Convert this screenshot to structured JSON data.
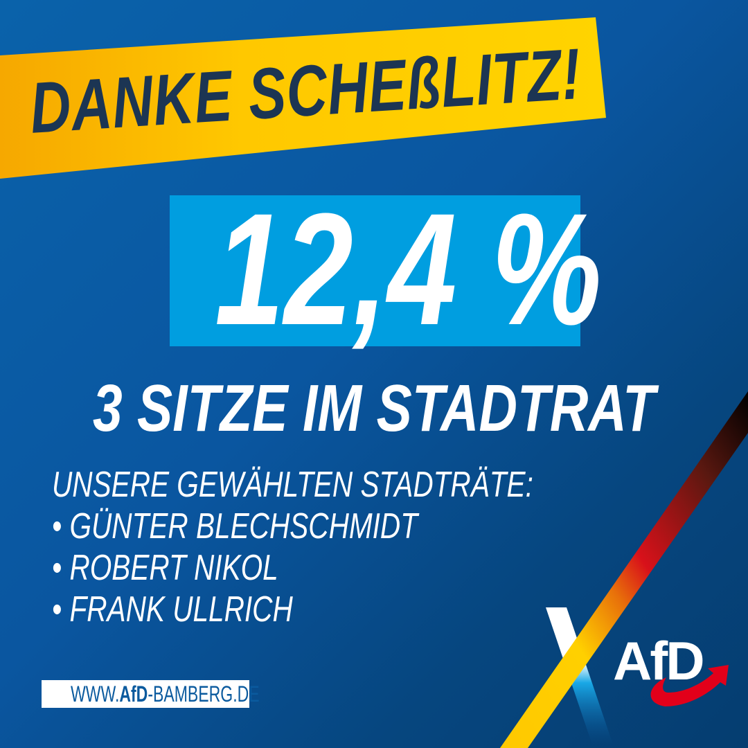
{
  "headline": "DANKE SCHEßLITZ!",
  "result": "12,4 %",
  "seats": "3 SITZE IM STADTRAT",
  "list": {
    "heading": "UNSERE GEWÄHLTEN STADTRÄTE:",
    "items": [
      "• GÜNTER BLECHSCHMIDT",
      "• ROBERT NIKOL",
      "• FRANK ULLRICH"
    ]
  },
  "url": {
    "prefix": "WWW.",
    "brand": "AfD",
    "suffix": "-BAMBERG.DE"
  },
  "logo": {
    "text": "AfD",
    "icon": "afd-logo-arrow"
  },
  "colors": {
    "banner": "#ffc800",
    "headline": "#1c3553",
    "result_box": "#009ee0",
    "background": "#0a56a0",
    "logo_arrow": "#e2001a"
  }
}
